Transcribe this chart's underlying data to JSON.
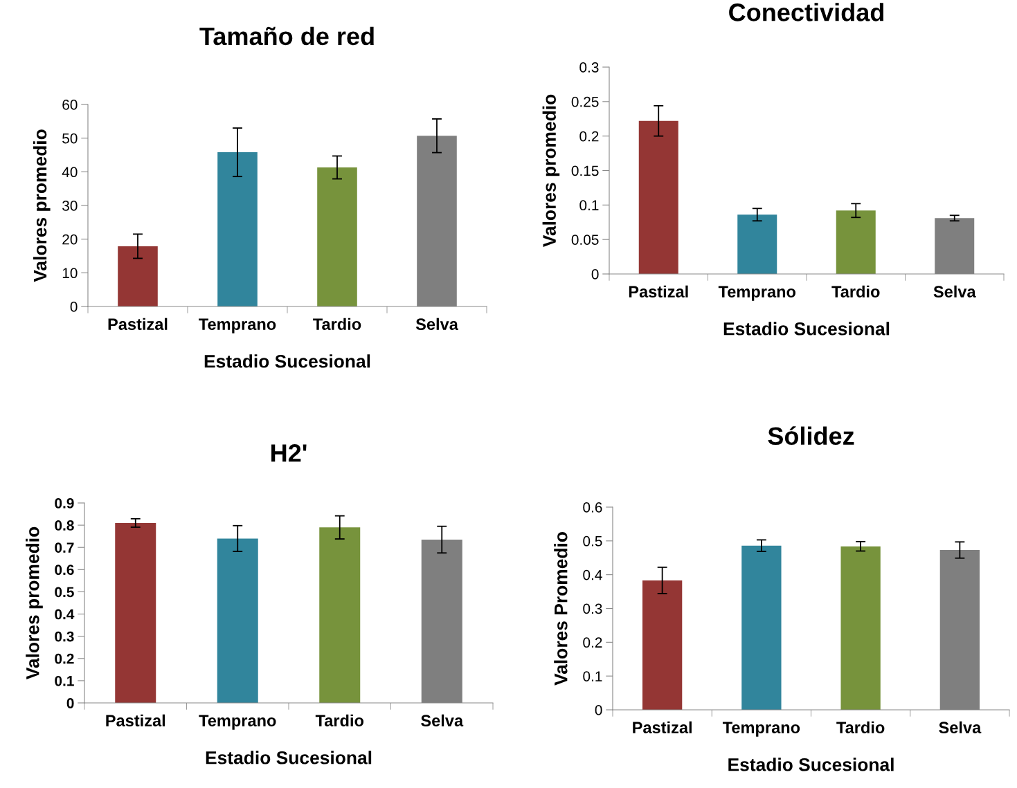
{
  "chart_data": [
    {
      "type": "bar",
      "title": "Tamaño de red",
      "xlabel": "Estadio Sucesional",
      "ylabel": "Valores promedio",
      "categories": [
        "Pastizal",
        "Temprano",
        "Tardio",
        "Selva"
      ],
      "values": [
        17.9,
        45.8,
        41.3,
        50.7
      ],
      "errors": [
        3.6,
        7.2,
        3.4,
        5.0
      ],
      "colors": [
        "#943634",
        "#31859c",
        "#77933c",
        "#7f7f7f"
      ],
      "ylim": [
        0,
        60
      ],
      "yticks": [
        0,
        10,
        20,
        30,
        40,
        50,
        60
      ],
      "grid": false,
      "legend": false
    },
    {
      "type": "bar",
      "title": "Conectividad",
      "xlabel": "Estadio Sucesional",
      "ylabel": "Valores promedio",
      "categories": [
        "Pastizal",
        "Temprano",
        "Tardio",
        "Selva"
      ],
      "values": [
        0.222,
        0.086,
        0.092,
        0.081
      ],
      "errors": [
        0.022,
        0.009,
        0.01,
        0.004
      ],
      "colors": [
        "#943634",
        "#31859c",
        "#77933c",
        "#7f7f7f"
      ],
      "ylim": [
        0,
        0.3
      ],
      "yticks": [
        0,
        0.05,
        0.1,
        0.15,
        0.2,
        0.25,
        0.3
      ],
      "grid": false,
      "legend": false
    },
    {
      "type": "bar",
      "title": "H2'",
      "xlabel": "Estadio Sucesional",
      "ylabel": "Valores promedio",
      "categories": [
        "Pastizal",
        "Temprano",
        "Tardio",
        "Selva"
      ],
      "values": [
        0.81,
        0.74,
        0.79,
        0.735
      ],
      "errors": [
        0.019,
        0.058,
        0.052,
        0.06
      ],
      "colors": [
        "#943634",
        "#31859c",
        "#77933c",
        "#7f7f7f"
      ],
      "ylim": [
        0,
        0.9
      ],
      "yticks": [
        0,
        0.1,
        0.2,
        0.3,
        0.4,
        0.5,
        0.6,
        0.7,
        0.8,
        0.9
      ],
      "grid": false,
      "legend": false
    },
    {
      "type": "bar",
      "title": "Sólidez",
      "xlabel": "Estadio Sucesional",
      "ylabel": "Valores Promedio",
      "categories": [
        "Pastizal",
        "Temprano",
        "Tardio",
        "Selva"
      ],
      "values": [
        0.383,
        0.486,
        0.484,
        0.473
      ],
      "errors": [
        0.039,
        0.017,
        0.014,
        0.024
      ],
      "colors": [
        "#943634",
        "#31859c",
        "#77933c",
        "#7f7f7f"
      ],
      "ylim": [
        0,
        0.6
      ],
      "yticks": [
        0,
        0.1,
        0.2,
        0.3,
        0.4,
        0.5,
        0.6
      ],
      "grid": false,
      "legend": false
    }
  ]
}
